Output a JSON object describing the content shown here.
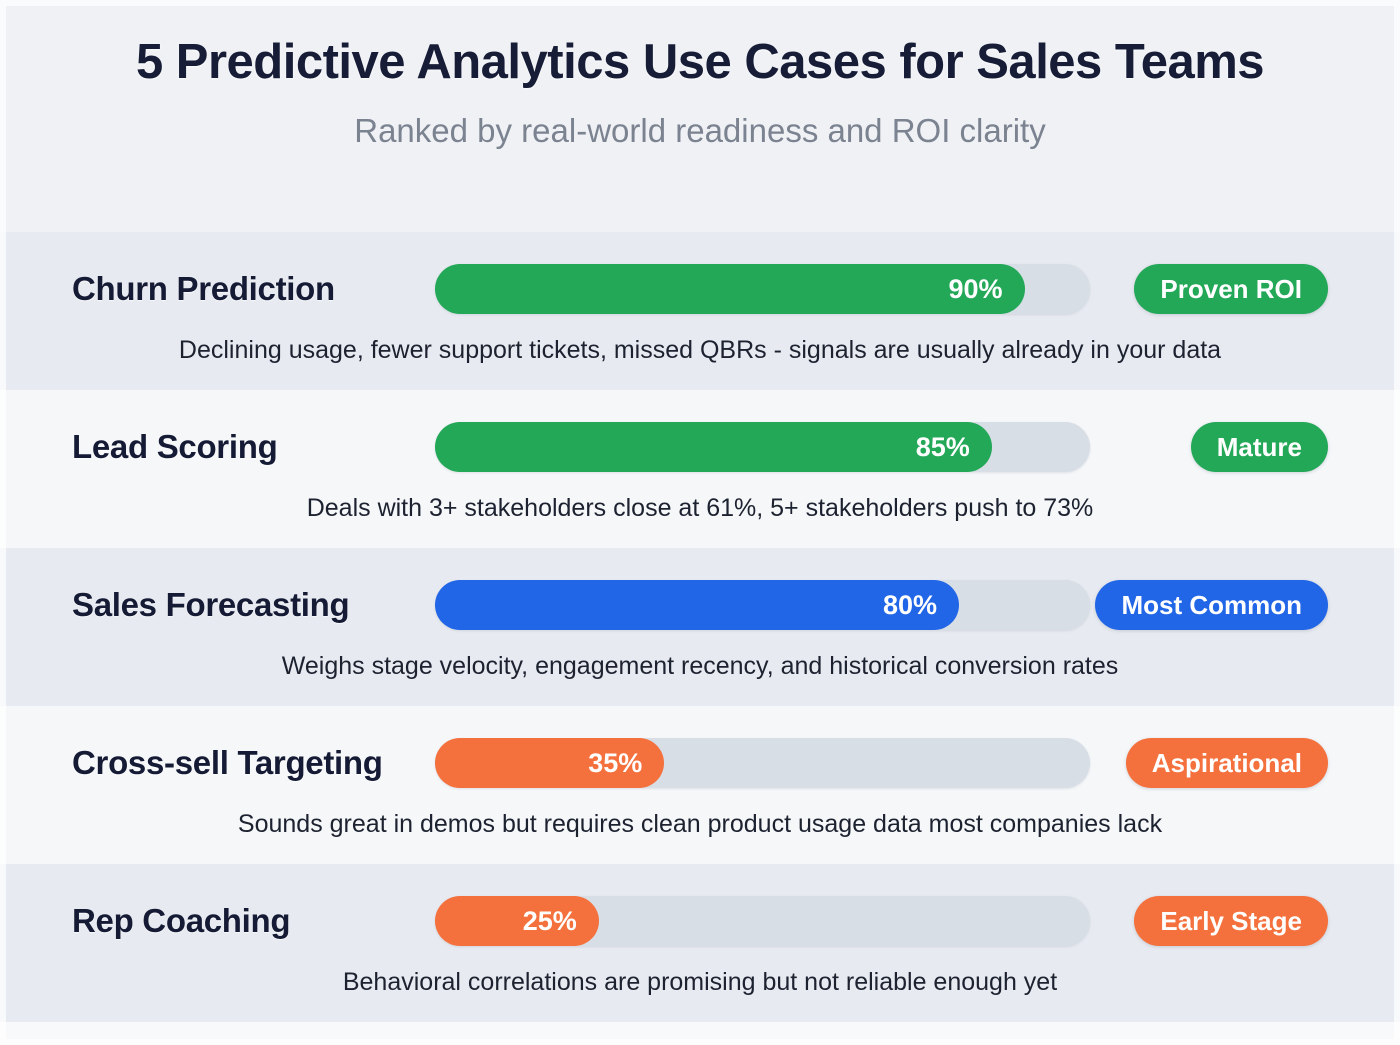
{
  "header": {
    "title": "5 Predictive Analytics Use Cases for Sales Teams",
    "subtitle": "Ranked by real-world readiness and ROI clarity"
  },
  "colors": {
    "green": "#23a857",
    "blue": "#2266e8",
    "orange": "#f4703c",
    "track": "#d8dee6",
    "title_navy": "#181d37",
    "stripe_dark": "#e7eaf0",
    "stripe_light": "#f5f7f9"
  },
  "rows": [
    {
      "label": "Churn Prediction",
      "value": 90,
      "value_label": "90%",
      "badge": "Proven ROI",
      "color": "#23a857",
      "description": "Declining usage, fewer support tickets, missed QBRs - signals are usually already in your data"
    },
    {
      "label": "Lead Scoring",
      "value": 85,
      "value_label": "85%",
      "badge": "Mature",
      "color": "#23a857",
      "description": "Deals with 3+ stakeholders close at 61%, 5+ stakeholders push to 73%"
    },
    {
      "label": "Sales Forecasting",
      "value": 80,
      "value_label": "80%",
      "badge": "Most Common",
      "color": "#2266e8",
      "description": "Weighs stage velocity, engagement recency, and historical conversion rates"
    },
    {
      "label": "Cross-sell Targeting",
      "value": 35,
      "value_label": "35%",
      "badge": "Aspirational",
      "color": "#f4703c",
      "description": "Sounds great in demos but requires clean product usage data most companies lack"
    },
    {
      "label": "Rep Coaching",
      "value": 25,
      "value_label": "25%",
      "badge": "Early Stage",
      "color": "#f4703c",
      "description": "Behavioral correlations are promising but not reliable enough yet"
    }
  ],
  "chart_data": {
    "type": "bar",
    "orientation": "horizontal",
    "title": "5 Predictive Analytics Use Cases for Sales Teams",
    "subtitle": "Ranked by real-world readiness and ROI clarity",
    "categories": [
      "Churn Prediction",
      "Lead Scoring",
      "Sales Forecasting",
      "Cross-sell Targeting",
      "Rep Coaching"
    ],
    "values": [
      90,
      85,
      80,
      35,
      25
    ],
    "value_suffix": "%",
    "xlim": [
      0,
      100
    ],
    "grid": false,
    "legend": false,
    "bar_colors": [
      "#23a857",
      "#23a857",
      "#2266e8",
      "#f4703c",
      "#f4703c"
    ],
    "badges": [
      "Proven ROI",
      "Mature",
      "Most Common",
      "Aspirational",
      "Early Stage"
    ],
    "annotations": [
      "Declining usage, fewer support tickets, missed QBRs - signals are usually already in your data",
      "Deals with 3+ stakeholders close at 61%, 5+ stakeholders push to 73%",
      "Weighs stage velocity, engagement recency, and historical conversion rates",
      "Sounds great in demos but requires clean product usage data most companies lack",
      "Behavioral correlations are promising but not reliable enough yet"
    ]
  }
}
